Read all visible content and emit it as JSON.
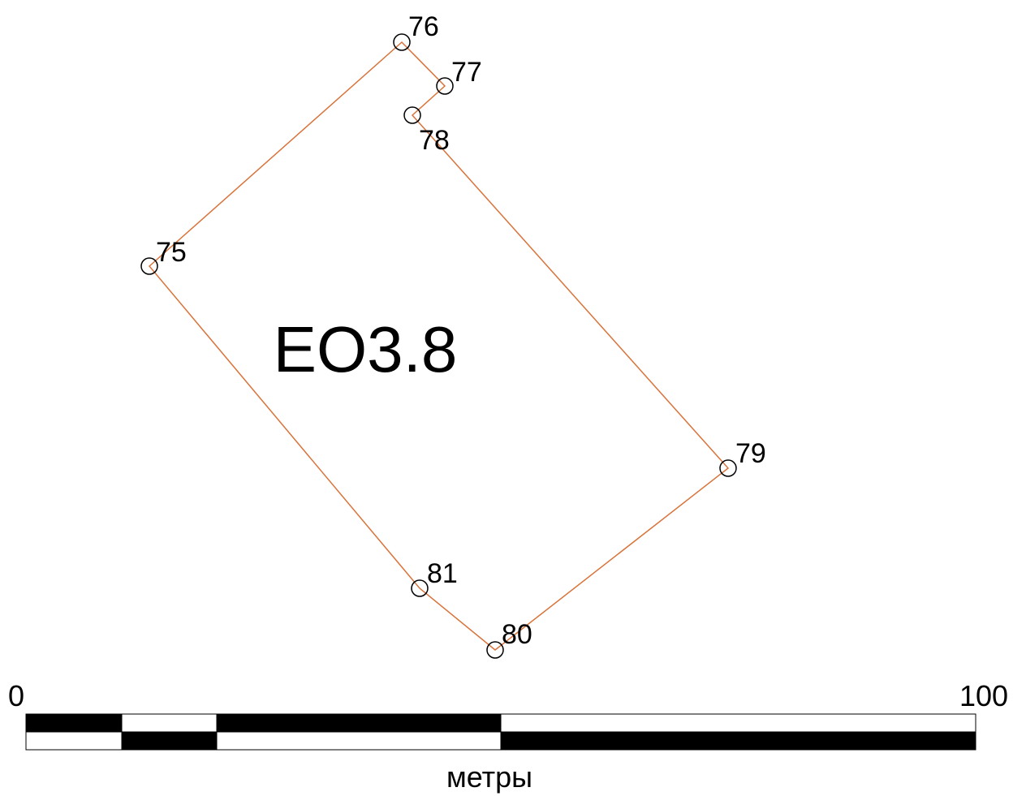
{
  "parcel": {
    "label": "ЕО3.8",
    "points": [
      {
        "label": "75"
      },
      {
        "label": "76"
      },
      {
        "label": "77"
      },
      {
        "label": "78"
      },
      {
        "label": "79"
      },
      {
        "label": "80"
      },
      {
        "label": "81"
      }
    ]
  },
  "scale_bar": {
    "start_label": "0",
    "end_label": "100",
    "unit": "метры"
  }
}
